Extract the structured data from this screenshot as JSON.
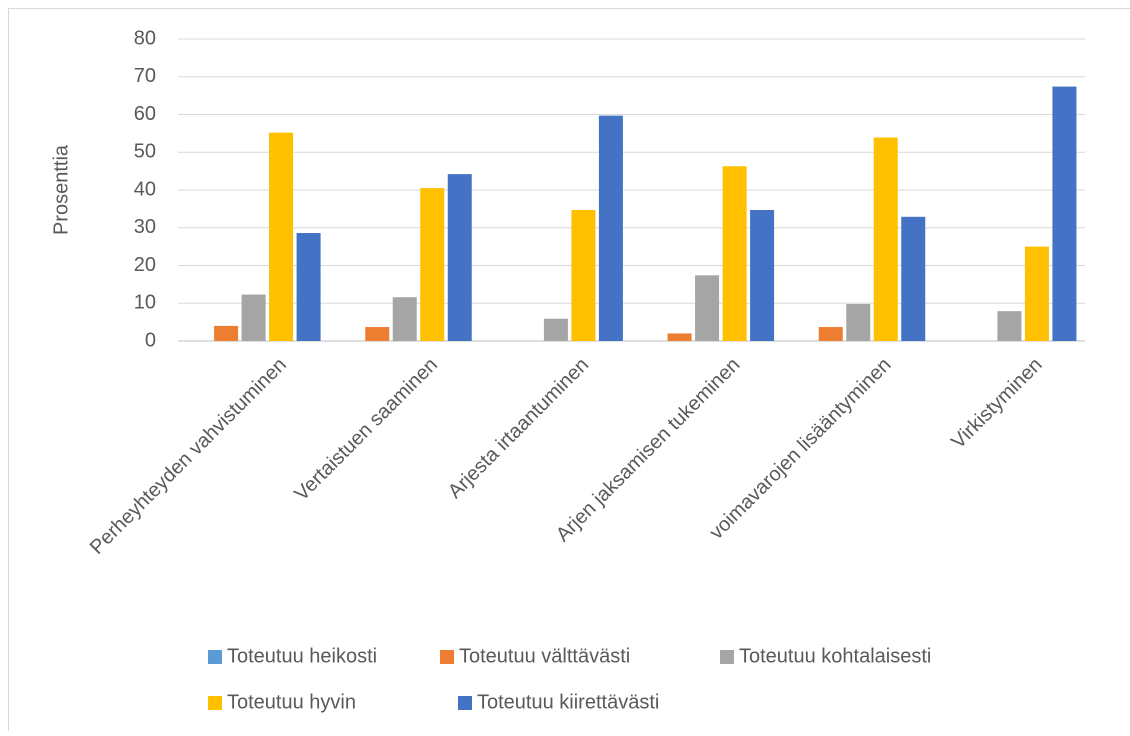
{
  "chart_data": {
    "type": "bar",
    "y_label": "Prosenttia",
    "categories": [
      "Perheyhteyden vahvistuminen",
      "Vertaistuen saaminen",
      "Arjesta irtaantuminen",
      "Arjen jaksamisen tukeminen",
      "voimavarojen lisääntyminen",
      "Virkistyminen"
    ],
    "series": [
      {
        "name": "Toteutuu heikosti",
        "color": "#5b9bd5",
        "values": [
          0,
          0,
          0,
          0,
          0,
          0
        ]
      },
      {
        "name": "Toteutuu välttävästi",
        "color": "#ed7d31",
        "values": [
          4,
          3.7,
          0,
          2,
          3.7,
          0
        ]
      },
      {
        "name": "Toteutuu kohtalaisesti",
        "color": "#a5a5a5",
        "values": [
          12.3,
          11.6,
          5.9,
          17.4,
          9.8,
          7.9
        ]
      },
      {
        "name": "Toteutuu hyvin",
        "color": "#ffc000",
        "values": [
          55.2,
          40.5,
          34.7,
          46.3,
          53.9,
          25
        ]
      },
      {
        "name": "Toteutuu kiirettävästi",
        "color": "#4472c4",
        "values": [
          28.6,
          44.2,
          59.7,
          34.7,
          32.9,
          67.4
        ]
      }
    ],
    "ylim": [
      0,
      80
    ],
    "yticks": [
      0,
      10,
      20,
      30,
      40,
      50,
      60,
      70,
      80
    ],
    "grid": true
  }
}
